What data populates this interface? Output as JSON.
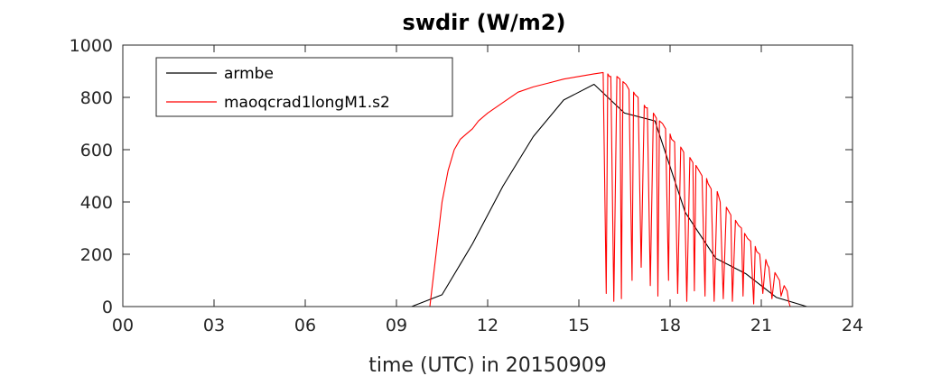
{
  "chart_data": {
    "type": "line",
    "title": "swdir  (W/m2)",
    "xlabel": "time (UTC) in 20150909",
    "ylabel": "",
    "xlim": [
      0,
      24
    ],
    "ylim": [
      0,
      1000
    ],
    "x_ticks": [
      0,
      3,
      6,
      9,
      12,
      15,
      18,
      21,
      24
    ],
    "x_tick_labels": [
      "00",
      "03",
      "06",
      "09",
      "12",
      "15",
      "18",
      "21",
      "24"
    ],
    "y_ticks": [
      0,
      200,
      400,
      600,
      800,
      1000
    ],
    "y_tick_labels": [
      "0",
      "200",
      "400",
      "600",
      "800",
      "1000"
    ],
    "grid": false,
    "legend_position": "top-left",
    "series": [
      {
        "name": "armbe",
        "color": "#000000",
        "x": [
          0,
          1,
          2,
          3,
          4,
          5,
          6,
          7,
          8,
          9,
          9.5,
          10.5,
          11.5,
          12.5,
          13.5,
          14.5,
          15.5,
          16.5,
          17.5,
          18.5,
          19.5,
          20.5,
          21.5,
          22.5,
          23.5,
          24
        ],
        "y": [
          0,
          0,
          0,
          0,
          0,
          0,
          0,
          0,
          0,
          0,
          0,
          45,
          240,
          460,
          650,
          790,
          850,
          740,
          710,
          360,
          185,
          125,
          35,
          0,
          0,
          0
        ]
      },
      {
        "name": "maoqcrad1longM1.s2",
        "color": "#ff0000",
        "x": [
          0,
          10.1,
          10.3,
          10.5,
          10.7,
          10.9,
          11.1,
          11.3,
          11.5,
          11.7,
          12,
          12.5,
          13,
          13.5,
          14,
          14.5,
          15,
          15.5,
          15.8,
          15.9,
          15.95,
          16.0,
          16.05,
          16.15,
          16.25,
          16.35,
          16.4,
          16.45,
          16.55,
          16.65,
          16.75,
          16.8,
          16.85,
          16.95,
          17.05,
          17.15,
          17.2,
          17.25,
          17.35,
          17.45,
          17.55,
          17.6,
          17.65,
          17.75,
          17.85,
          17.95,
          18.0,
          18.05,
          18.15,
          18.25,
          18.35,
          18.4,
          18.45,
          18.55,
          18.65,
          18.75,
          18.8,
          18.85,
          18.95,
          19.05,
          19.15,
          19.2,
          19.25,
          19.35,
          19.45,
          19.55,
          19.6,
          19.65,
          19.75,
          19.85,
          19.95,
          20.0,
          20.05,
          20.15,
          20.25,
          20.35,
          20.4,
          20.45,
          20.55,
          20.65,
          20.75,
          20.8,
          20.85,
          20.95,
          21.05,
          21.15,
          21.2,
          21.25,
          21.35,
          21.45,
          21.55,
          21.6,
          21.65,
          21.75,
          21.85,
          21.9,
          21.95,
          22.0,
          24
        ],
        "y": [
          0,
          0,
          200,
          400,
          520,
          600,
          640,
          660,
          680,
          710,
          740,
          780,
          820,
          840,
          855,
          870,
          880,
          890,
          895,
          50,
          890,
          880,
          880,
          20,
          880,
          870,
          30,
          860,
          850,
          830,
          100,
          820,
          810,
          800,
          150,
          770,
          760,
          760,
          80,
          740,
          720,
          40,
          710,
          700,
          680,
          100,
          660,
          640,
          630,
          50,
          610,
          600,
          590,
          20,
          570,
          550,
          60,
          540,
          520,
          500,
          40,
          490,
          470,
          450,
          20,
          440,
          420,
          400,
          30,
          380,
          360,
          350,
          20,
          330,
          310,
          300,
          40,
          280,
          260,
          250,
          10,
          230,
          210,
          200,
          50,
          180,
          160,
          150,
          30,
          130,
          110,
          100,
          40,
          80,
          60,
          20,
          0,
          0,
          0
        ]
      }
    ]
  }
}
